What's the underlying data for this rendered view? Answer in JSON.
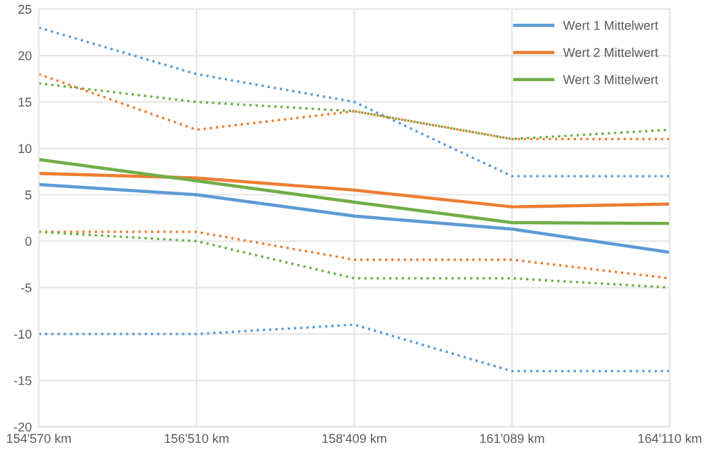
{
  "chart_data": {
    "type": "line",
    "categories": [
      "154'570 km",
      "156'510 km",
      "158'409 km",
      "161'089 km",
      "164'110 km"
    ],
    "ylim": [
      -20,
      25
    ],
    "yticks": [
      -20,
      -15,
      -10,
      -5,
      0,
      5,
      10,
      15,
      20,
      25
    ],
    "grid": true,
    "legend": "top right",
    "marker": "none",
    "series": [
      {
        "name": "Wert 1 Mittelwert",
        "color": "#5b9bd5",
        "line_style": "solid",
        "values": [
          6.1,
          5.0,
          2.7,
          1.3,
          -1.2
        ]
      },
      {
        "name": "Wert 2 Mittelwert",
        "color": "#ed7d31",
        "line_style": "solid",
        "values": [
          7.3,
          6.8,
          5.5,
          3.7,
          4.0
        ]
      },
      {
        "name": "Wert 3 Mittelwert",
        "color": "#70ad47",
        "line_style": "solid",
        "values": [
          8.8,
          6.5,
          4.2,
          2.0,
          1.9
        ]
      },
      {
        "color": "#5b9bd5",
        "line_style": "dotted",
        "values": [
          23,
          18,
          15,
          7,
          7
        ]
      },
      {
        "color": "#5b9bd5",
        "line_style": "dotted",
        "values": [
          -10,
          -10,
          -9,
          -14,
          -14
        ]
      },
      {
        "color": "#ed7d31",
        "line_style": "dotted",
        "values": [
          18,
          12,
          14,
          11,
          11
        ]
      },
      {
        "color": "#ed7d31",
        "line_style": "dotted",
        "values": [
          1,
          1,
          -2,
          -2,
          -4
        ]
      },
      {
        "color": "#70ad47",
        "line_style": "dotted",
        "values": [
          17,
          15,
          14,
          11,
          12
        ]
      },
      {
        "color": "#70ad47",
        "line_style": "dotted",
        "values": [
          1,
          0,
          -4,
          -4,
          -5
        ]
      }
    ]
  }
}
